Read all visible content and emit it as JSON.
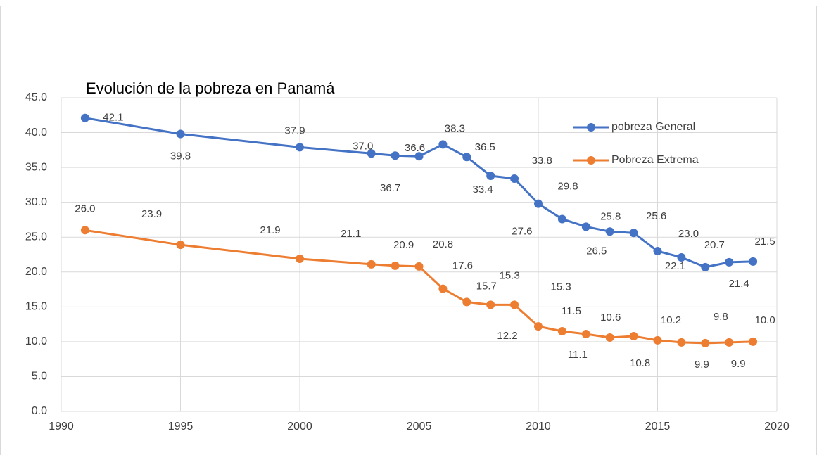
{
  "chart_data": {
    "type": "scatter-line",
    "title": "Evolución de la pobreza en Panamá",
    "x": [
      1991,
      1995,
      2000,
      2003,
      2004,
      2005,
      2006,
      2007,
      2008,
      2009,
      2010,
      2011,
      2012,
      2013,
      2014,
      2015,
      2016,
      2017,
      2018,
      2019
    ],
    "series": [
      {
        "name": "pobreza General",
        "color": "#4472c4",
        "values": [
          42.1,
          39.8,
          37.9,
          37.0,
          36.7,
          36.6,
          38.3,
          36.5,
          33.8,
          33.4,
          29.8,
          27.6,
          26.5,
          25.8,
          25.6,
          23.0,
          22.1,
          20.7,
          21.4,
          21.5
        ],
        "value_labels": [
          "42.1",
          "39.8",
          "37.9",
          "37.0",
          "36.7",
          "36.6",
          "38.3",
          "36.5",
          "33.8",
          "33.4",
          "29.8",
          "27.6",
          "26.5",
          "25.8",
          "25.6",
          "23.0",
          "22.1",
          "20.7",
          "21.4",
          "21.5"
        ]
      },
      {
        "name": "Pobreza Extrema",
        "color": "#ed7d31",
        "values": [
          26.0,
          23.9,
          21.9,
          21.1,
          20.9,
          20.8,
          17.6,
          15.7,
          15.3,
          15.3,
          12.2,
          11.5,
          11.1,
          10.6,
          10.8,
          10.2,
          9.9,
          9.8,
          9.9,
          10.0
        ],
        "value_labels": [
          "26.0",
          "23.9",
          "21.9",
          "21.1",
          "20.9",
          "20.8",
          "17.6",
          "15.7",
          "15.3",
          "15.3",
          "12.2",
          "11.5",
          "11.1",
          "10.6",
          "10.8",
          "10.2",
          "9.9",
          "9.8",
          "9.9",
          "10.0"
        ]
      }
    ],
    "xlim": [
      1990,
      2020
    ],
    "xticks": [
      1990,
      1995,
      2000,
      2005,
      2010,
      2015,
      2020
    ],
    "ylim": [
      0,
      45
    ],
    "yticks": [
      {
        "value": 0,
        "label": "0.0"
      },
      {
        "value": 5,
        "label": "5.0"
      },
      {
        "value": 10,
        "label": "10.0"
      },
      {
        "value": 15,
        "label": "15.0"
      },
      {
        "value": 20,
        "label": "20.0"
      },
      {
        "value": 25,
        "label": "25.0"
      },
      {
        "value": 30,
        "label": "30.0"
      },
      {
        "value": 35,
        "label": "35.0"
      },
      {
        "value": 40,
        "label": "40.0"
      },
      {
        "value": 45,
        "label": "45.0"
      }
    ],
    "grid": true,
    "legend": "upper right"
  }
}
